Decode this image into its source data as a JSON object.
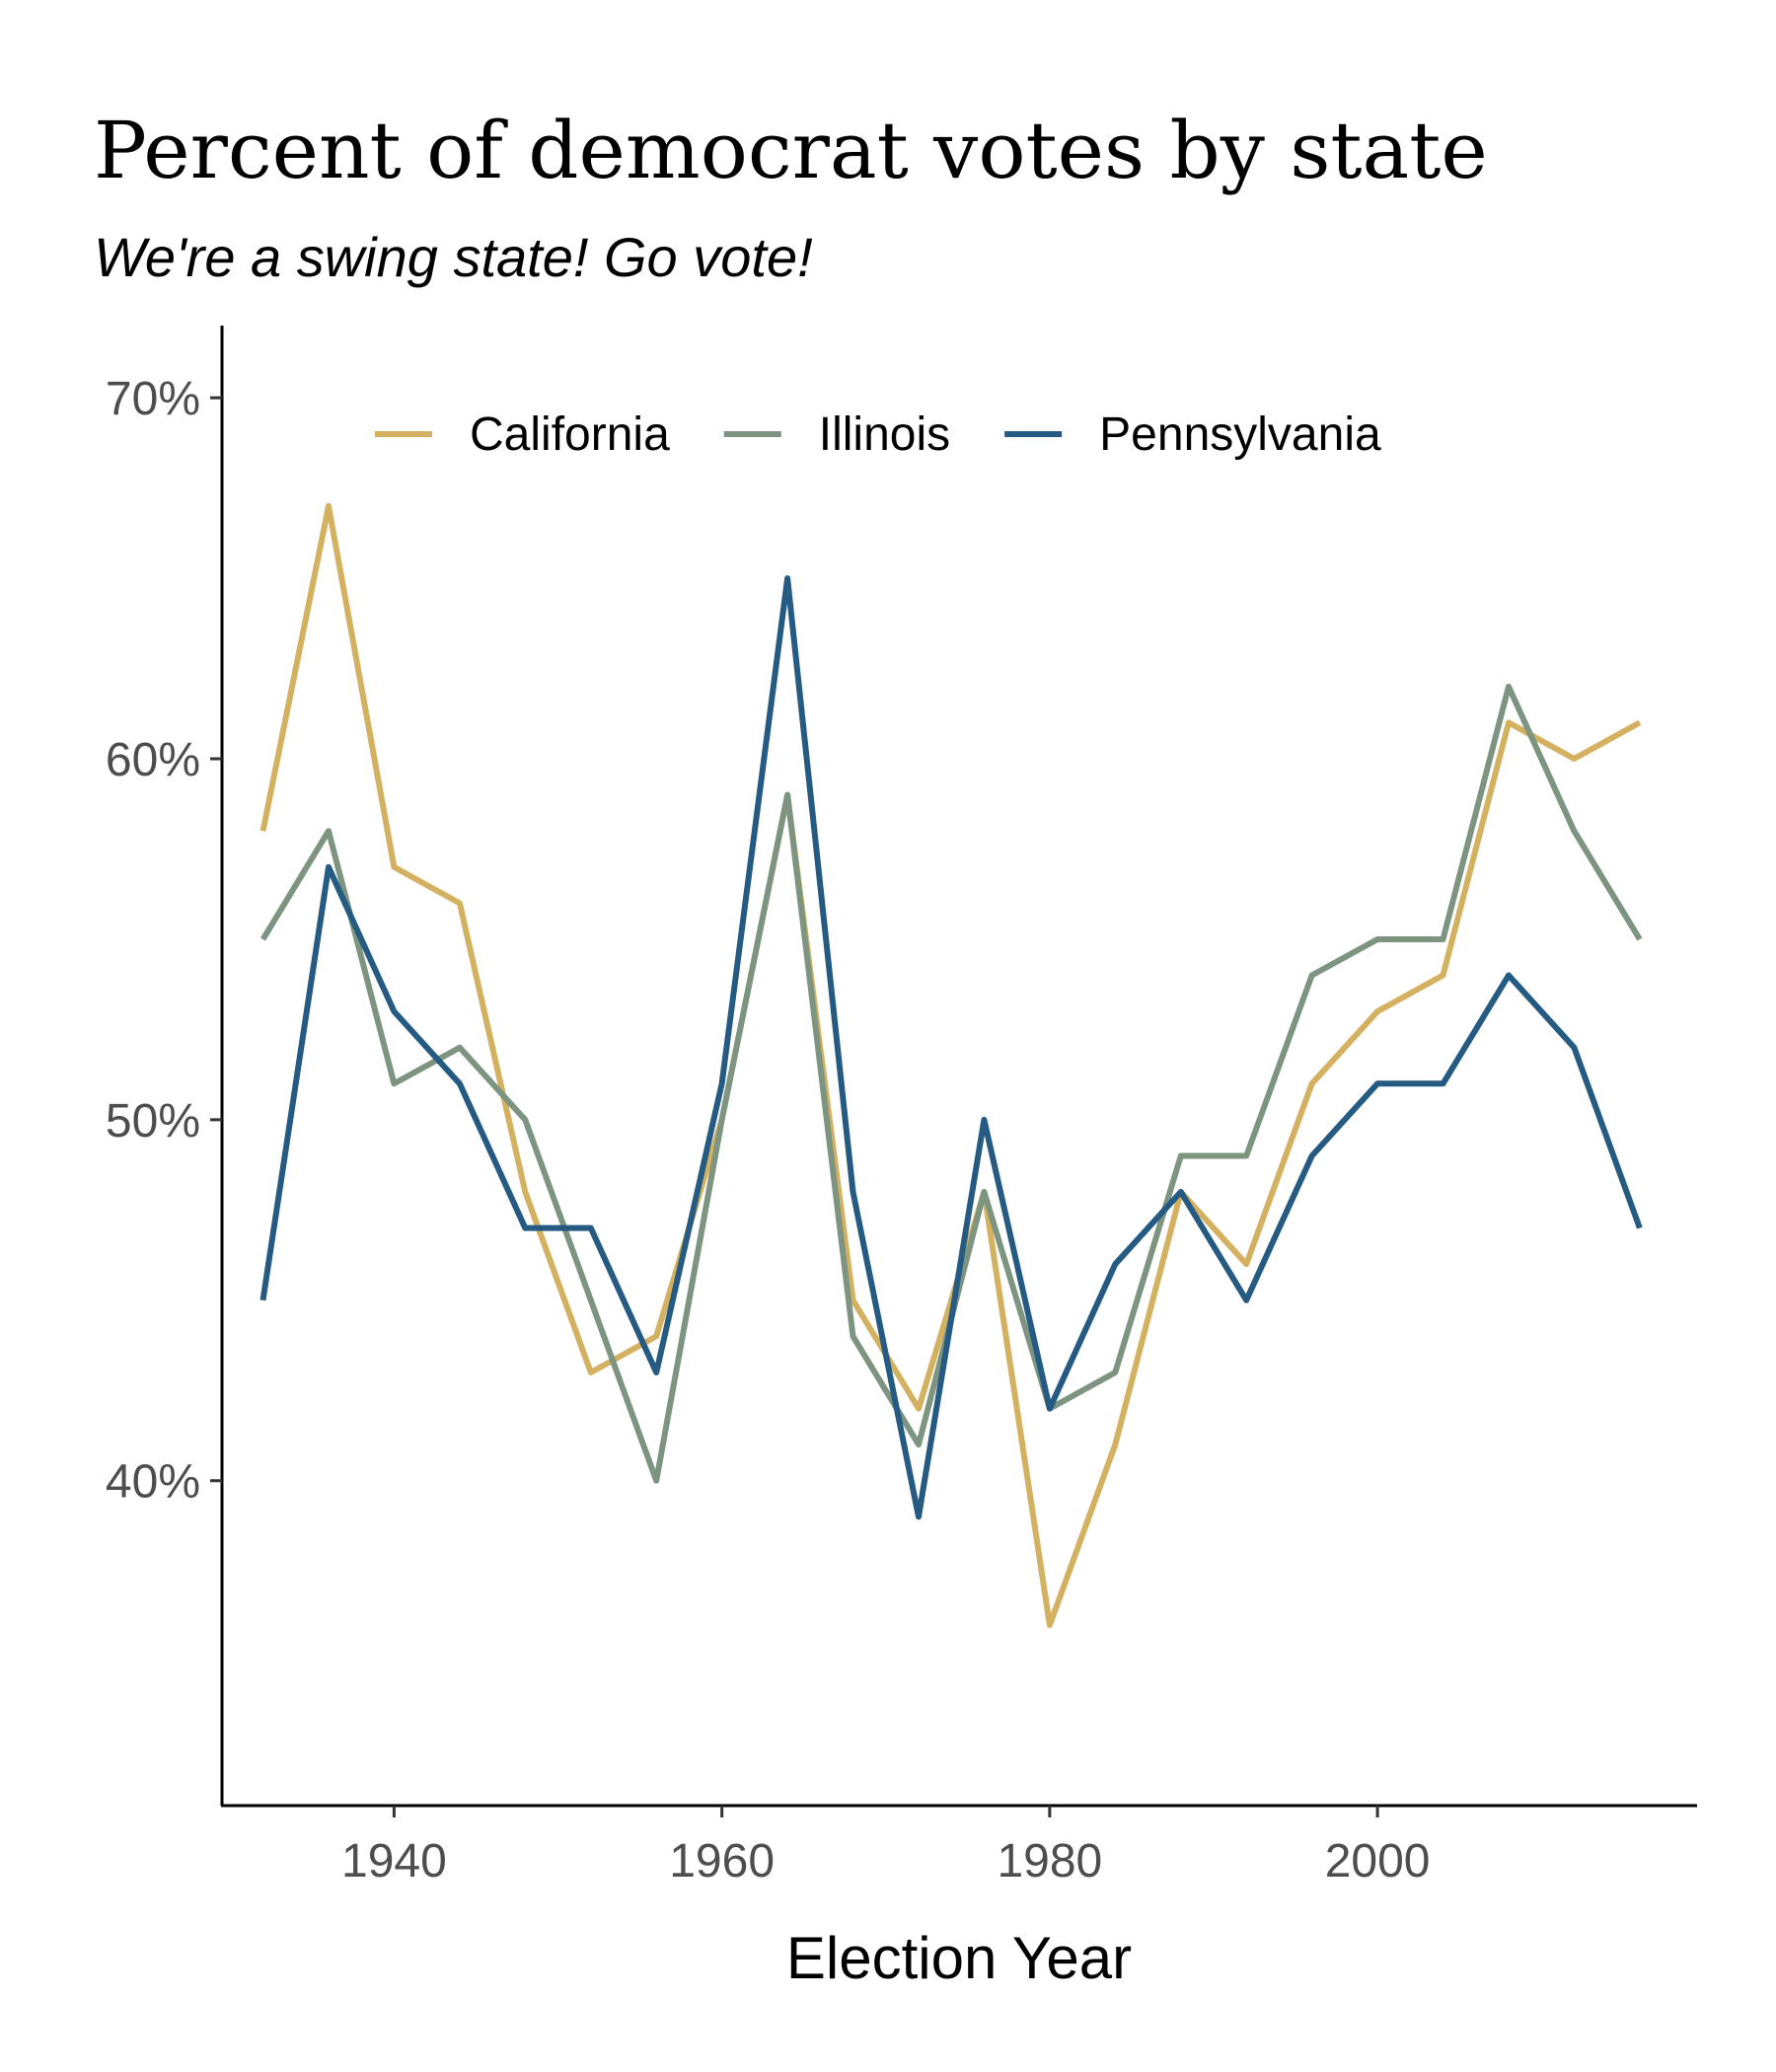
{
  "chart_data": {
    "type": "line",
    "title": "Percent of democrat votes by state",
    "subtitle": "We're a swing state! Go vote!",
    "xlabel": "Election Year",
    "ylabel": "",
    "xlim": [
      1929.5,
      2019.5
    ],
    "ylim": [
      31,
      72
    ],
    "x_ticks": [
      1940,
      1960,
      1980,
      2000
    ],
    "x_tick_labels": [
      "1940",
      "1960",
      "1980",
      "2000"
    ],
    "y_ticks": [
      40,
      50,
      60,
      70
    ],
    "y_tick_labels": [
      "40%",
      "50%",
      "60%",
      "70%"
    ],
    "grid": false,
    "legend_position": "top",
    "x": [
      1932,
      1936,
      1940,
      1944,
      1948,
      1952,
      1956,
      1960,
      1964,
      1968,
      1972,
      1976,
      1980,
      1984,
      1988,
      1992,
      1996,
      2000,
      2004,
      2008,
      2012,
      2016
    ],
    "series": [
      {
        "name": "California",
        "color": "#d4b160",
        "values": [
          58,
          67,
          57,
          56,
          48,
          43,
          44,
          50,
          59,
          45,
          42,
          48,
          36,
          41,
          48,
          46,
          51,
          53,
          54,
          61,
          60,
          61
        ]
      },
      {
        "name": "Illinois",
        "color": "#7d9480",
        "values": [
          55,
          58,
          51,
          52,
          50,
          45,
          40,
          50,
          59,
          44,
          41,
          48,
          42,
          43,
          49,
          49,
          54,
          55,
          55,
          62,
          58,
          55
        ]
      },
      {
        "name": "Pennsylvania",
        "color": "#255a82",
        "values": [
          45,
          57,
          53,
          51,
          47,
          47,
          43,
          51,
          65,
          48,
          39,
          50,
          42,
          46,
          48,
          45,
          49,
          51,
          51,
          54,
          52,
          47
        ]
      }
    ]
  }
}
